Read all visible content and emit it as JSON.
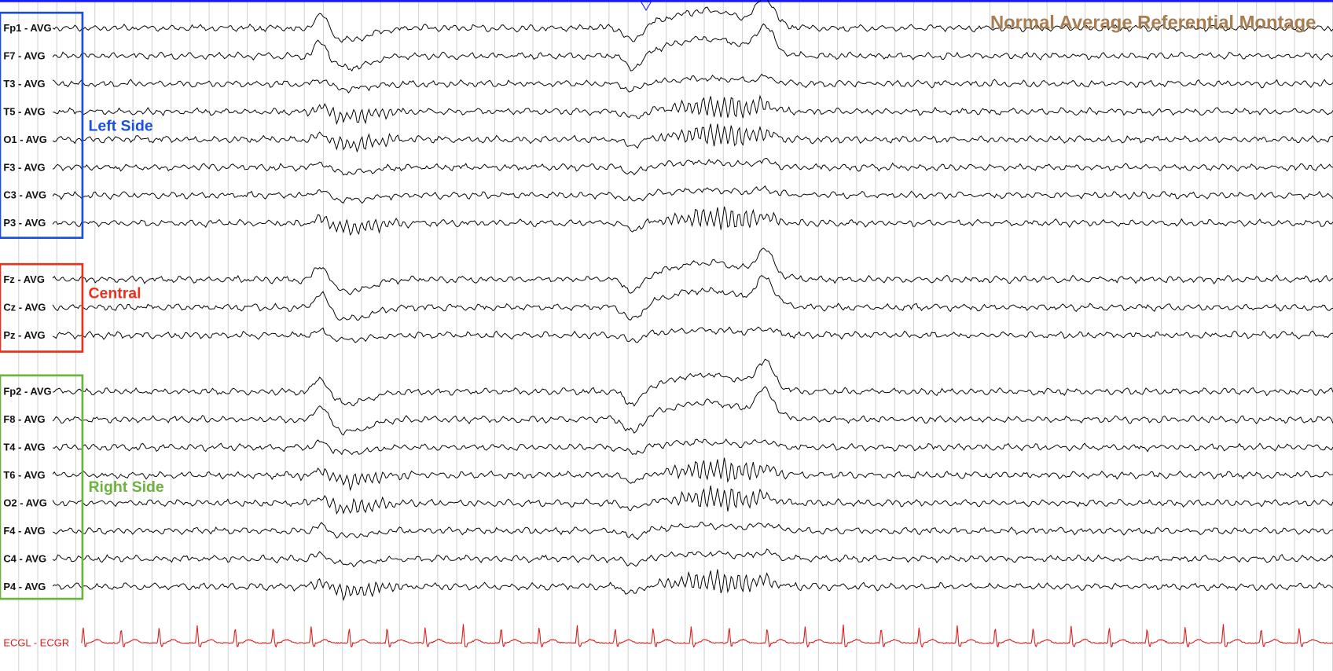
{
  "title": "Normal Average Referential Montage",
  "groups": [
    {
      "label": "Left Side",
      "channels": [
        "Fp1 - AVG",
        "F7 - AVG",
        "T3 - AVG",
        "T5 - AVG",
        "O1 - AVG",
        "F3 - AVG",
        "C3 - AVG",
        "P3 - AVG"
      ]
    },
    {
      "label": "Central",
      "channels": [
        "Fz - AVG",
        "Cz - AVG",
        "Pz - AVG"
      ]
    },
    {
      "label": "Right Side",
      "channels": [
        "Fp2 - AVG",
        "F8 - AVG",
        "T4 - AVG",
        "T6 - AVG",
        "O2 - AVG",
        "F4 - AVG",
        "C4 - AVG",
        "P4 - AVG"
      ]
    }
  ],
  "ecg": "ECGL - ECGR"
}
